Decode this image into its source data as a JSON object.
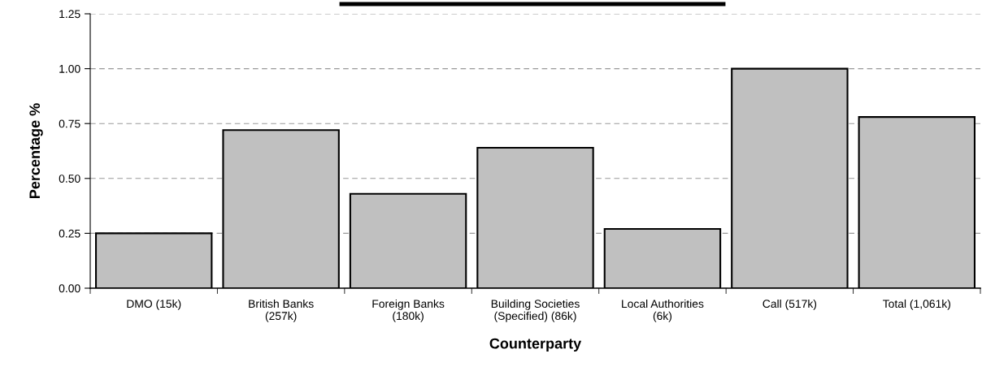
{
  "chart_data": {
    "type": "bar",
    "xlabel": "Counterparty",
    "ylabel": "Percentage %",
    "categories": [
      "DMO (15k)",
      "British Banks\n(257k)",
      "Foreign Banks\n(180k)",
      "Building Societies\n(Specified) (86k)",
      "Local Authorities\n(6k)",
      "Call (517k)",
      "Total (1,061k)"
    ],
    "values": [
      0.25,
      0.72,
      0.43,
      0.64,
      0.27,
      1.0,
      0.78
    ],
    "color": "#c0c0c0",
    "ylim": [
      0,
      1.25
    ],
    "yticks": [
      {
        "value": 0,
        "label": "0.00"
      },
      {
        "value": 0.25,
        "label": "0.25"
      },
      {
        "value": 0.5,
        "label": "0.50"
      },
      {
        "value": 0.75,
        "label": "0.75"
      },
      {
        "value": 1.0,
        "label": "1.00"
      },
      {
        "value": 1.25,
        "label": "1.25"
      }
    ],
    "grid": "y"
  }
}
